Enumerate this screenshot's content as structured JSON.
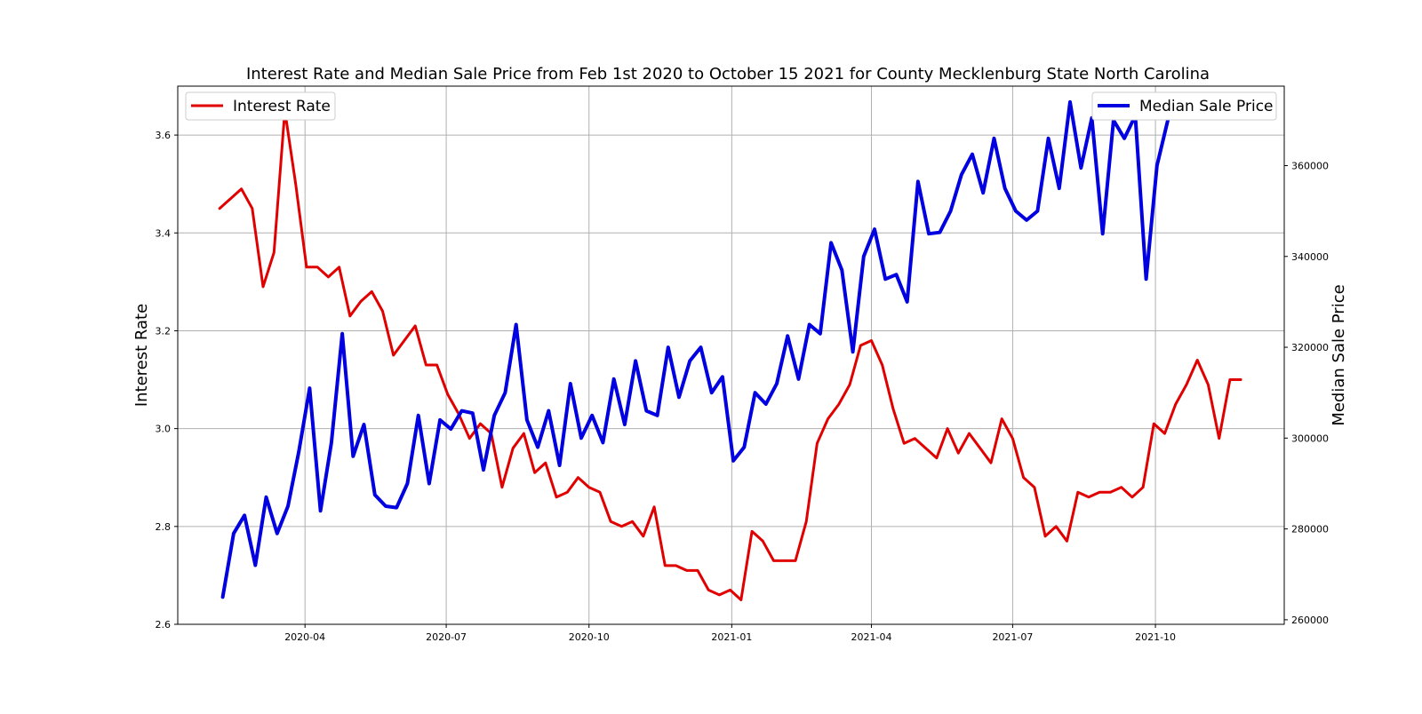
{
  "chart_data": {
    "type": "line",
    "title": "Interest Rate and Median Sale Price from Feb 1st 2020 to October 15 2021 for County Mecklenburg State North Carolina",
    "xlabel": "",
    "x_ticks": [
      "2020-04",
      "2020-07",
      "2020-10",
      "2021-01",
      "2021-04",
      "2021-07",
      "2021-10"
    ],
    "xlim": [
      "2020-01-10",
      "2021-12-23"
    ],
    "grid": true,
    "left_axis": {
      "label": "Interest Rate",
      "ylim": [
        2.6,
        3.7
      ],
      "ticks": [
        "2.6",
        "2.8",
        "3.0",
        "3.2",
        "3.4",
        "3.6"
      ],
      "legend_placement": "top-left"
    },
    "right_axis": {
      "label": "Median Sale Price",
      "ylim": [
        259000,
        377500
      ],
      "ticks": [
        "260000",
        "280000",
        "300000",
        "320000",
        "340000",
        "360000"
      ],
      "legend_placement": "top-right"
    },
    "series": [
      {
        "name": "Interest Rate",
        "axis": "left",
        "color": "#e00000",
        "x": [
          "2020-02-06",
          "2020-02-13",
          "2020-02-20",
          "2020-02-27",
          "2020-03-05",
          "2020-03-12",
          "2020-03-19",
          "2020-03-26",
          "2020-04-02",
          "2020-04-09",
          "2020-04-16",
          "2020-04-23",
          "2020-04-30",
          "2020-05-07",
          "2020-05-14",
          "2020-05-21",
          "2020-05-28",
          "2020-06-04",
          "2020-06-11",
          "2020-06-18",
          "2020-06-25",
          "2020-07-02",
          "2020-07-09",
          "2020-07-16",
          "2020-07-23",
          "2020-07-30",
          "2020-08-06",
          "2020-08-13",
          "2020-08-20",
          "2020-08-27",
          "2020-09-03",
          "2020-09-10",
          "2020-09-17",
          "2020-09-24",
          "2020-10-01",
          "2020-10-08",
          "2020-10-15",
          "2020-10-22",
          "2020-10-29",
          "2020-11-05",
          "2020-11-12",
          "2020-11-19",
          "2020-11-26",
          "2020-12-03",
          "2020-12-10",
          "2020-12-17",
          "2020-12-24",
          "2020-12-31",
          "2021-01-07",
          "2021-01-14",
          "2021-01-21",
          "2021-01-28",
          "2021-02-04",
          "2021-02-11",
          "2021-02-18",
          "2021-02-25",
          "2021-03-04",
          "2021-03-11",
          "2021-03-18",
          "2021-03-25",
          "2021-04-01",
          "2021-04-08",
          "2021-04-15",
          "2021-04-22",
          "2021-04-29",
          "2021-05-06",
          "2021-05-13",
          "2021-05-20",
          "2021-05-27",
          "2021-06-03",
          "2021-06-10",
          "2021-06-17",
          "2021-06-24",
          "2021-07-01",
          "2021-07-08",
          "2021-07-15",
          "2021-07-22",
          "2021-07-29",
          "2021-08-05",
          "2021-08-12",
          "2021-08-19",
          "2021-08-26",
          "2021-09-02",
          "2021-09-09",
          "2021-09-16",
          "2021-09-23",
          "2021-09-30",
          "2021-10-07",
          "2021-10-14",
          "2021-10-21",
          "2021-10-28",
          "2021-11-04",
          "2021-11-11",
          "2021-11-18",
          "2021-11-25"
        ],
        "values": [
          3.45,
          3.47,
          3.49,
          3.45,
          3.29,
          3.36,
          3.65,
          3.5,
          3.33,
          3.33,
          3.31,
          3.33,
          3.23,
          3.26,
          3.28,
          3.24,
          3.15,
          3.18,
          3.21,
          3.13,
          3.13,
          3.07,
          3.03,
          2.98,
          3.01,
          2.99,
          2.88,
          2.96,
          2.99,
          2.91,
          2.93,
          2.86,
          2.87,
          2.9,
          2.88,
          2.87,
          2.81,
          2.8,
          2.81,
          2.78,
          2.84,
          2.72,
          2.72,
          2.71,
          2.71,
          2.67,
          2.66,
          2.67,
          2.65,
          2.79,
          2.77,
          2.73,
          2.73,
          2.73,
          2.81,
          2.97,
          3.02,
          3.05,
          3.09,
          3.17,
          3.18,
          3.13,
          3.04,
          2.97,
          2.98,
          2.96,
          2.94,
          3.0,
          2.95,
          2.99,
          2.96,
          2.93,
          3.02,
          2.98,
          2.9,
          2.88,
          2.78,
          2.8,
          2.77,
          2.87,
          2.86,
          2.87,
          2.87,
          2.88,
          2.86,
          2.88,
          3.01,
          2.99,
          3.05,
          3.09,
          3.14,
          3.09,
          2.98,
          3.1,
          3.1
        ]
      },
      {
        "name": "Median Sale Price",
        "axis": "right",
        "color": "#0000e0",
        "x": [
          "2020-02-08",
          "2020-02-15",
          "2020-02-22",
          "2020-02-29",
          "2020-03-07",
          "2020-03-14",
          "2020-03-21",
          "2020-03-28",
          "2020-04-04",
          "2020-04-11",
          "2020-04-18",
          "2020-04-25",
          "2020-05-02",
          "2020-05-09",
          "2020-05-16",
          "2020-05-23",
          "2020-05-30",
          "2020-06-06",
          "2020-06-13",
          "2020-06-20",
          "2020-06-27",
          "2020-07-04",
          "2020-07-11",
          "2020-07-18",
          "2020-07-25",
          "2020-08-01",
          "2020-08-08",
          "2020-08-15",
          "2020-08-22",
          "2020-08-29",
          "2020-09-05",
          "2020-09-12",
          "2020-09-19",
          "2020-09-26",
          "2020-10-03",
          "2020-10-10",
          "2020-10-17",
          "2020-10-24",
          "2020-10-31",
          "2020-11-07",
          "2020-11-14",
          "2020-11-21",
          "2020-11-28",
          "2020-12-05",
          "2020-12-12",
          "2020-12-19",
          "2020-12-26",
          "2021-01-02",
          "2021-01-09",
          "2021-01-16",
          "2021-01-23",
          "2021-01-30",
          "2021-02-06",
          "2021-02-13",
          "2021-02-20",
          "2021-02-27",
          "2021-03-06",
          "2021-03-13",
          "2021-03-20",
          "2021-03-27",
          "2021-04-03",
          "2021-04-10",
          "2021-04-17",
          "2021-04-24",
          "2021-05-01",
          "2021-05-08",
          "2021-05-15",
          "2021-05-22",
          "2021-05-29",
          "2021-06-05",
          "2021-06-12",
          "2021-06-19",
          "2021-06-26",
          "2021-07-03",
          "2021-07-10",
          "2021-07-17",
          "2021-07-24",
          "2021-07-31",
          "2021-08-07",
          "2021-08-14",
          "2021-08-21",
          "2021-08-28",
          "2021-09-04",
          "2021-09-11",
          "2021-09-18",
          "2021-09-25",
          "2021-10-02",
          "2021-10-09"
        ],
        "values": [
          265000,
          279000,
          283000,
          272000,
          287000,
          279000,
          285000,
          297000,
          311000,
          284000,
          299000,
          323000,
          296000,
          303000,
          287500,
          285000,
          284700,
          290000,
          305000,
          290000,
          304000,
          302000,
          306000,
          305500,
          293000,
          305000,
          310000,
          325000,
          304000,
          298000,
          306000,
          294000,
          312000,
          300000,
          305000,
          299000,
          313000,
          303000,
          317000,
          306000,
          305000,
          320000,
          309000,
          317000,
          320000,
          310000,
          313500,
          295000,
          298000,
          310000,
          307500,
          312000,
          322500,
          313000,
          325000,
          323000,
          343000,
          337000,
          319000,
          340000,
          346000,
          335000,
          336000,
          330000,
          356500,
          345000,
          345300,
          350000,
          358000,
          362500,
          354000,
          366000,
          355000,
          350000,
          348000,
          350000,
          366000,
          355000,
          374000,
          359500,
          370500,
          345000,
          370000,
          366000,
          371000,
          335000,
          360000,
          370000
        ]
      }
    ]
  }
}
